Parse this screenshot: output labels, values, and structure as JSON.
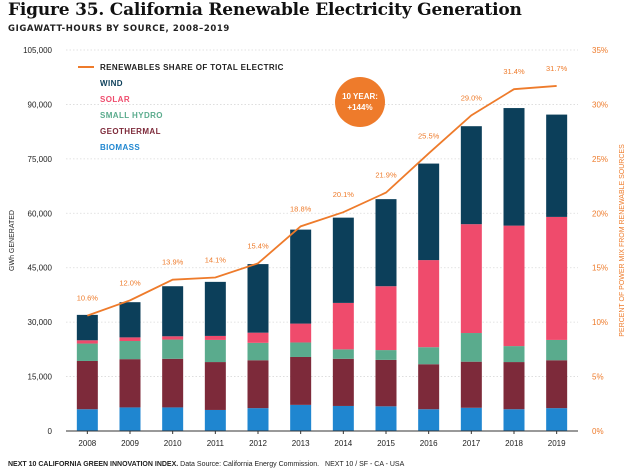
{
  "header": {
    "title": "Figure 35. California Renewable Electricity Generation",
    "subtitle": "GIGAWATT-HOURS BY SOURCE, 2008–2019"
  },
  "footer": {
    "lead": "NEXT 10 CALIFORNIA GREEN INNOVATION INDEX.",
    "source": " Data Source: California Energy Commission.",
    "tail": "NEXT 10 / SF - CA - USA"
  },
  "callout": {
    "line1": "10 YEAR:",
    "line2": "+144%"
  },
  "chart_data": {
    "type": "bar",
    "stacked": true,
    "categories": [
      "2008",
      "2009",
      "2010",
      "2011",
      "2012",
      "2013",
      "2014",
      "2015",
      "2016",
      "2017",
      "2018",
      "2019"
    ],
    "series": [
      {
        "name": "BIOMASS",
        "color": "#1f86d0",
        "values": [
          6000,
          6500,
          6500,
          5800,
          6300,
          7200,
          6900,
          6800,
          6000,
          6400,
          6000,
          6300
        ]
      },
      {
        "name": "GEOTHERMAL",
        "color": "#7d2a3a",
        "values": [
          13300,
          13300,
          13400,
          13200,
          13200,
          13200,
          13000,
          12800,
          12400,
          12700,
          13000,
          13200
        ]
      },
      {
        "name": "SMALL HYDRO",
        "color": "#5aab8d",
        "values": [
          4800,
          5000,
          5300,
          6100,
          4800,
          4000,
          2600,
          2700,
          4700,
          7900,
          4400,
          5600
        ]
      },
      {
        "name": "SOLAR",
        "color": "#ef4b6c",
        "values": [
          900,
          1000,
          900,
          1100,
          2800,
          5200,
          12800,
          17600,
          24000,
          30000,
          33200,
          33900
        ]
      },
      {
        "name": "WIND",
        "color": "#0c3f5a",
        "values": [
          7000,
          9700,
          13800,
          14900,
          18900,
          25900,
          23500,
          24000,
          26600,
          27000,
          32400,
          28200
        ]
      }
    ],
    "line": {
      "name": "RENEWABLES SHARE OF TOTAL ELECTRIC",
      "color": "#ee7b2b",
      "values": [
        10.6,
        12.0,
        13.9,
        14.1,
        15.4,
        18.8,
        20.1,
        21.9,
        25.5,
        29.0,
        31.4,
        31.7
      ],
      "labels": [
        "10.6%",
        "12.0%",
        "13.9%",
        "14.1%",
        "15.4%",
        "18.8%",
        "20.1%",
        "21.9%",
        "25.5%",
        "29.0%",
        "31.4%",
        "31.7%"
      ]
    },
    "legend_order": [
      "WIND",
      "SOLAR",
      "SMALL HYDRO",
      "GEOTHERMAL",
      "BIOMASS"
    ],
    "legend_position": "top-left",
    "ylabel": "GWh GENERATED",
    "y2label": "PERCENT OF POWER MIX FROM RENEWABLE SOURCES",
    "ylim": [
      0,
      105000
    ],
    "y2lim": [
      0,
      35
    ],
    "yticks": [
      "0",
      "15,000",
      "30,000",
      "45,000",
      "60,000",
      "75,000",
      "90,000",
      "105,000"
    ],
    "y2ticks": [
      "0%",
      "5%",
      "10%",
      "15%",
      "20%",
      "25%",
      "30%",
      "35%"
    ],
    "grid": true
  }
}
